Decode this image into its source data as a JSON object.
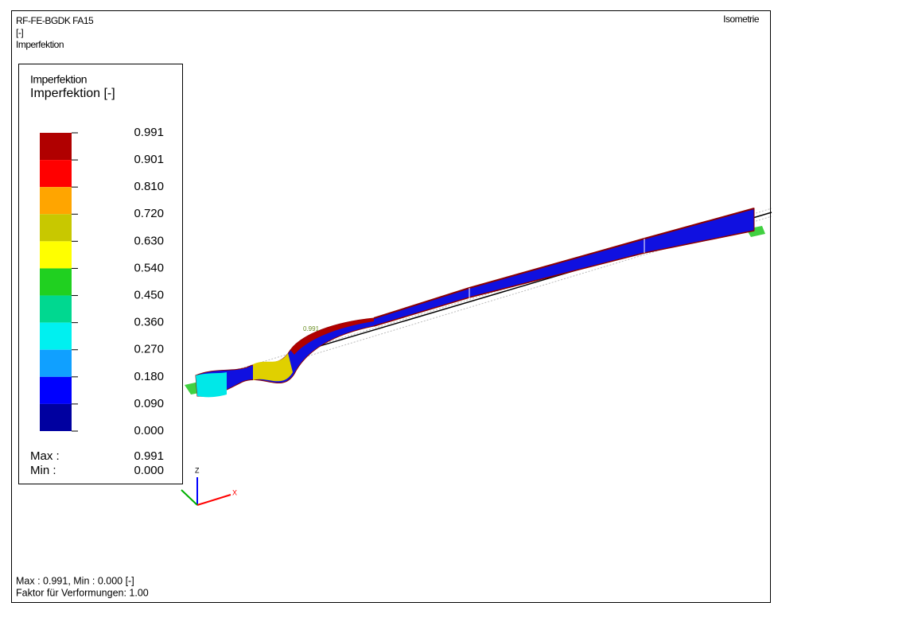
{
  "header": {
    "lines": [
      "RF-FE-BGDK FA15",
      "[-]",
      "Imperfektion"
    ],
    "view": "Isometrie"
  },
  "legend": {
    "title": "Imperfektion",
    "subtitle": "Imperfektion [-]",
    "values": [
      "0.991",
      "0.901",
      "0.810",
      "0.720",
      "0.630",
      "0.540",
      "0.450",
      "0.360",
      "0.270",
      "0.180",
      "0.090",
      "0.000"
    ],
    "colors": [
      "#b00000",
      "#ff0000",
      "#ffa500",
      "#c8c800",
      "#ffff00",
      "#20d020",
      "#00d890",
      "#00f0f0",
      "#10a0ff",
      "#0000ff",
      "#0000a0"
    ],
    "max_label": "Max :",
    "max": "0.991",
    "min_label": "Min :",
    "min": "0.000"
  },
  "model": {
    "max_marker": "0.991",
    "axis_z": "Z",
    "axis_x": "X"
  },
  "footer": [
    "Max : 0.991, Min : 0.000 [-]",
    "Faktor für Verformungen: 1.00"
  ]
}
